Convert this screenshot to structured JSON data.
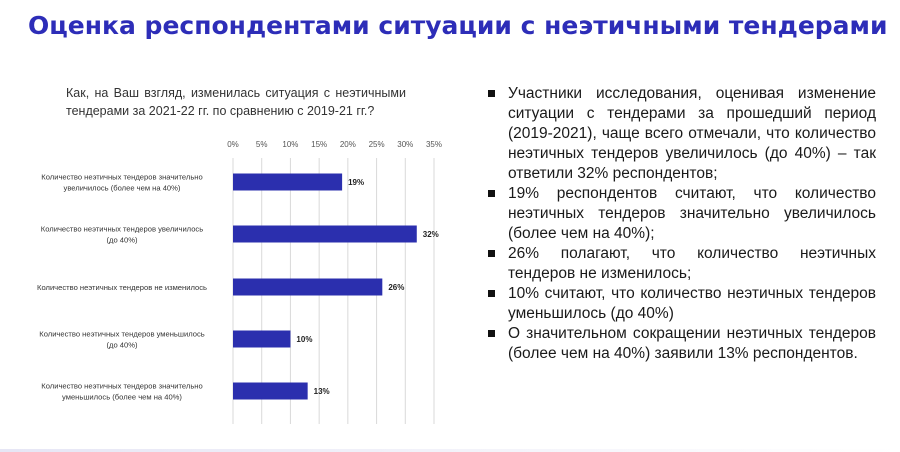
{
  "slide": {
    "title": "Оценка респондентами ситуации с неэтичными тендерами",
    "question": "Как, на Ваш взгляд, изменилась ситуация с неэтичными тендерами за 2021-22 гг. по сравнению с 2019-21 гг.?"
  },
  "bullets": [
    "Участники исследования, оценивая изменение ситуации с тендерами за прошедший период (2019-2021), чаще всего отмечали, что количество неэтичных тендеров увеличилось (до 40%) – так ответили 32% респондентов;",
    "19% респондентов считают, что количество неэтичных тендеров значительно увеличилось (более чем на 40%);",
    "26% полагают, что количество неэтичных тендеров не изменилось;",
    "10% считают, что количество неэтичных тендеров уменьшилось (до 40%)",
    "О значительном сокращении неэтичных тендеров (более чем на 40%) заявили 13% респондентов."
  ],
  "colors": {
    "title": "#2d2db8",
    "bar": "#2b2fae",
    "grid": "#d9d9d9"
  },
  "chart_data": {
    "type": "bar",
    "orientation": "horizontal",
    "categories": [
      [
        "Количество неэтичных тендеров значительно",
        "увеличилось (более чем на 40%)"
      ],
      [
        "Количество неэтичных тендеров увеличилось",
        "(до 40%)"
      ],
      [
        "Количество неэтичных тендеров не изменилось"
      ],
      [
        "Количество неэтичных тендеров уменьшилось",
        "(до 40%)"
      ],
      [
        "Количество неэтичных тендеров значительно",
        "уменьшилось (более чем на 40%)"
      ]
    ],
    "values": [
      19,
      32,
      26,
      10,
      13
    ],
    "value_labels": [
      "19%",
      "32%",
      "26%",
      "10%",
      "13%"
    ],
    "ticks": [
      0,
      5,
      10,
      15,
      20,
      25,
      30,
      35
    ],
    "tick_labels": [
      "0%",
      "5%",
      "10%",
      "15%",
      "20%",
      "25%",
      "30%",
      "35%"
    ],
    "xlim": [
      0,
      35
    ],
    "grid": true
  }
}
